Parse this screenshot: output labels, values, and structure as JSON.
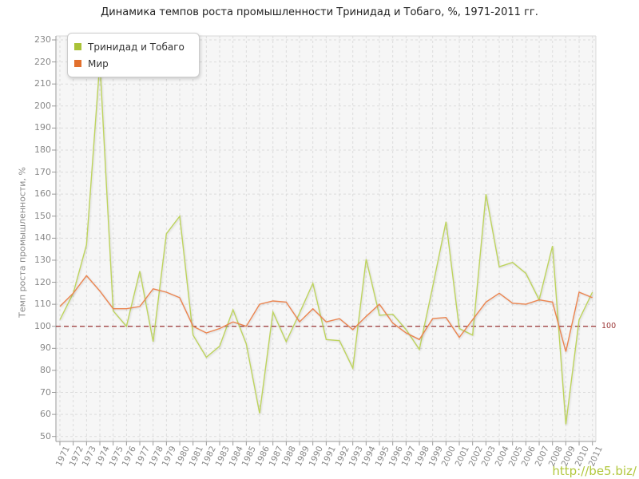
{
  "title": "Динамика темпов роста промышленности Тринидад и Тобаго, %, 1971-2011 гг.",
  "legend": {
    "items": [
      {
        "label": "Тринидад и Тобаго",
        "color": "#a9c238"
      },
      {
        "label": "Мир",
        "color": "#e2702d"
      }
    ]
  },
  "watermark": "http://be5.biz/",
  "chart_data": {
    "type": "line",
    "title": "Динамика темпов роста промышленности Тринидад и Тобаго, %, 1971-2011 гг.",
    "xlabel": "",
    "ylabel": "Темп роста промышленности, %",
    "ylim": [
      50,
      230
    ],
    "yticks": [
      50,
      60,
      70,
      80,
      90,
      100,
      110,
      120,
      130,
      140,
      150,
      160,
      170,
      180,
      190,
      200,
      210,
      220,
      230
    ],
    "grid": true,
    "legend_position": "top-left",
    "reference_line": {
      "value": 100,
      "label": "100",
      "color": "#993333"
    },
    "x": [
      1971,
      1972,
      1973,
      1974,
      1975,
      1976,
      1977,
      1978,
      1979,
      1980,
      1981,
      1982,
      1983,
      1984,
      1985,
      1986,
      1987,
      1988,
      1989,
      1990,
      1991,
      1992,
      1993,
      1994,
      1995,
      1996,
      1997,
      1998,
      1999,
      2000,
      2001,
      2002,
      2003,
      2004,
      2005,
      2006,
      2007,
      2008,
      2009,
      2010,
      2011
    ],
    "series": [
      {
        "name": "Тринидад и Тобаго",
        "color": "#bed45e",
        "values": [
          103,
          115,
          137,
          220,
          107,
          100,
          125,
          93,
          142,
          150,
          96,
          86,
          91,
          107.5,
          92,
          60.5,
          106.5,
          93,
          106,
          119.5,
          94,
          93.5,
          81,
          130.5,
          105,
          105.5,
          98.5,
          89.5,
          118,
          147.5,
          99,
          96,
          160,
          127,
          129,
          124,
          112,
          136.5,
          55.5,
          103,
          115.5
        ]
      },
      {
        "name": "Мир",
        "color": "#ec8550",
        "values": [
          109,
          115,
          123,
          116,
          108,
          108,
          109,
          117,
          115.5,
          113,
          100,
          97,
          99,
          102,
          100,
          110,
          111.5,
          111,
          102,
          108,
          102,
          103.5,
          98.5,
          104.5,
          110,
          101.5,
          97,
          94,
          103.5,
          104,
          95,
          103,
          111,
          115,
          110.5,
          110,
          112,
          111,
          88.5,
          115.5,
          113
        ]
      }
    ]
  }
}
